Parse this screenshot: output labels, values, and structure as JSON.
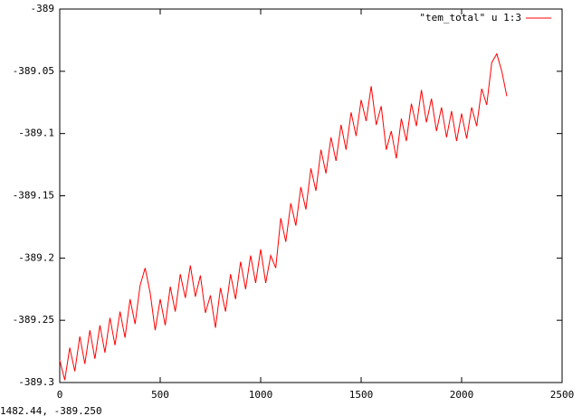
{
  "chart_data": {
    "type": "line",
    "legend": "top-right",
    "grid": false,
    "x": [
      0,
      25,
      50,
      75,
      100,
      125,
      150,
      175,
      200,
      225,
      250,
      275,
      300,
      325,
      350,
      375,
      400,
      425,
      450,
      475,
      500,
      525,
      550,
      575,
      600,
      625,
      650,
      675,
      700,
      725,
      750,
      775,
      800,
      825,
      850,
      875,
      900,
      925,
      950,
      975,
      1000,
      1025,
      1050,
      1075,
      1100,
      1125,
      1150,
      1175,
      1200,
      1225,
      1250,
      1275,
      1300,
      1325,
      1350,
      1375,
      1400,
      1425,
      1450,
      1475,
      1500,
      1525,
      1550,
      1575,
      1600,
      1625,
      1650,
      1675,
      1700,
      1725,
      1750,
      1775,
      1800,
      1825,
      1850,
      1875,
      1900,
      1925,
      1950,
      1975,
      2000,
      2025,
      2050,
      2075,
      2100,
      2125,
      2150,
      2175,
      2200,
      2225
    ],
    "series": [
      {
        "name": "\"tem_total\" u 1:3",
        "color": "#ff0000",
        "values": [
          -389.282,
          -389.298,
          -389.272,
          -389.291,
          -389.263,
          -389.285,
          -389.258,
          -389.281,
          -389.254,
          -389.276,
          -389.248,
          -389.27,
          -389.243,
          -389.264,
          -389.233,
          -389.253,
          -389.222,
          -389.208,
          -389.228,
          -389.258,
          -389.233,
          -389.254,
          -389.223,
          -389.243,
          -389.213,
          -389.232,
          -389.206,
          -389.231,
          -389.214,
          -389.244,
          -389.23,
          -389.256,
          -389.224,
          -389.243,
          -389.213,
          -389.233,
          -389.203,
          -389.225,
          -389.198,
          -389.22,
          -389.193,
          -389.22,
          -389.198,
          -389.208,
          -389.168,
          -389.187,
          -389.156,
          -389.174,
          -389.143,
          -389.161,
          -389.128,
          -389.146,
          -389.113,
          -389.132,
          -389.103,
          -389.122,
          -389.093,
          -389.113,
          -389.083,
          -389.102,
          -389.073,
          -389.09,
          -389.062,
          -389.093,
          -389.078,
          -389.113,
          -389.098,
          -389.12,
          -389.088,
          -389.106,
          -389.076,
          -389.094,
          -389.065,
          -389.091,
          -389.072,
          -389.098,
          -389.079,
          -389.103,
          -389.082,
          -389.106,
          -389.084,
          -389.104,
          -389.079,
          -389.094,
          -389.064,
          -389.077,
          -389.043,
          -389.036,
          -389.05,
          -389.07
        ]
      }
    ],
    "xlim": [
      0,
      2500
    ],
    "xticks": [
      0,
      500,
      1000,
      1500,
      2000,
      2500
    ],
    "ylim": [
      -389.3,
      -389
    ],
    "yticks": [
      -389.3,
      -389.25,
      -389.2,
      -389.15,
      -389.1,
      -389.05,
      -389
    ]
  },
  "status": "1482.44, -389.250"
}
